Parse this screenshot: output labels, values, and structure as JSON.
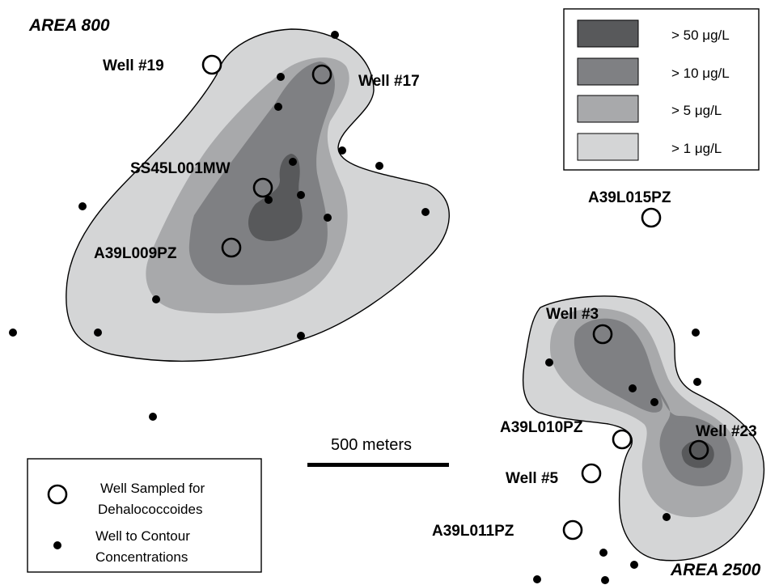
{
  "areas": {
    "area800": "AREA 800",
    "area2500": "AREA 2500"
  },
  "wells": {
    "well19": "Well #19",
    "well17": "Well #17",
    "ss45": "SS45L001MW",
    "a39l009": "A39L009PZ",
    "a39l015": "A39L015PZ",
    "well3": "Well #3",
    "a39l010": "A39L010PZ",
    "well23": "Well #23",
    "well5": "Well #5",
    "a39l011": "A39L011PZ"
  },
  "concentration_legend": {
    "items": [
      {
        "label": "> 50 μg/L",
        "color": "#58595b"
      },
      {
        "label": "> 10 μg/L",
        "color": "#7f8083"
      },
      {
        "label": "> 5 μg/L",
        "color": "#a8a9ab"
      },
      {
        "label": "> 1 μg/L",
        "color": "#d4d5d6"
      }
    ]
  },
  "symbol_key": {
    "sampled_line1": "Well Sampled for",
    "sampled_line2": "Dehalococcoides",
    "contour_line1": "Well to Contour",
    "contour_line2": "Concentrations"
  },
  "scale_bar": {
    "label": "500 meters"
  }
}
